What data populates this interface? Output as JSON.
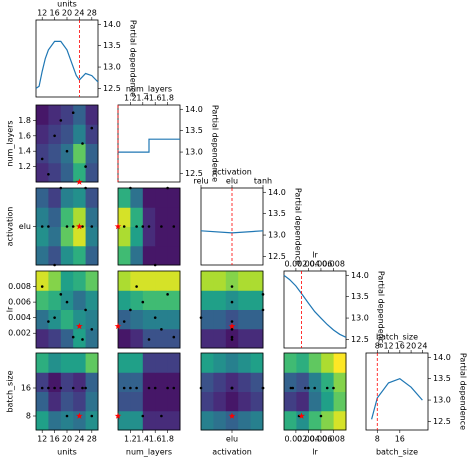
{
  "chart_data": {
    "type": "objective-matrix",
    "ylabel": "Partial dependence",
    "ylim": [
      12.3,
      14.1
    ],
    "yticks": [
      12.5,
      {
        "value": 13,
        "label": "13.0"
      },
      13.5,
      {
        "value": 14,
        "label": "14.0"
      }
    ],
    "zlim": [
      12.4,
      14.0
    ],
    "dimensions": [
      {
        "name": "units",
        "lim": [
          10,
          30
        ],
        "ticks": [
          12,
          16,
          20,
          24,
          28
        ],
        "pair_ticks": [
          12,
          16,
          20,
          24,
          28
        ],
        "best": 24
      },
      {
        "name": "num_layers",
        "lim": [
          1,
          2
        ],
        "ticks": [
          1.2,
          1.4,
          1.6,
          1.8
        ],
        "pair_ticks": [
          1.2,
          1.4,
          1.6,
          1.8
        ],
        "best": 1
      },
      {
        "name": "activation",
        "lim": [
          0,
          2
        ],
        "ticks": [
          {
            "value": 0,
            "label": "relu"
          },
          {
            "value": 1,
            "label": "elu"
          },
          {
            "value": 2,
            "label": "tanh"
          }
        ],
        "pair_ticks": [
          {
            "value": 1,
            "label": "elu"
          }
        ],
        "best": 1
      },
      {
        "name": "lr",
        "lim": [
          0.0001,
          0.01
        ],
        "ticks": [
          0.002,
          0.004,
          0.006,
          0.008
        ],
        "pair_ticks": [
          0.002,
          0.004,
          0.006,
          0.008
        ],
        "best": 0.0029
      },
      {
        "name": "batch_size",
        "lim": [
          4,
          26
        ],
        "ticks": [
          8,
          12,
          16,
          20,
          24
        ],
        "pair_ticks": [
          8,
          16
        ],
        "best": 8
      }
    ],
    "diagonal": [
      {
        "x": [
          10,
          11,
          12,
          13,
          14,
          16,
          18,
          20,
          22,
          23,
          24,
          26,
          28,
          30
        ],
        "values": [
          12.5,
          12.55,
          12.9,
          13.2,
          13.4,
          13.6,
          13.6,
          13.4,
          13.0,
          12.8,
          12.7,
          12.85,
          12.8,
          12.65
        ]
      },
      {
        "x": [
          1,
          1.5,
          1.5,
          2
        ],
        "values": [
          13.0,
          13.0,
          13.3,
          13.3
        ]
      },
      {
        "x": [
          0,
          1,
          2
        ],
        "values": [
          13.1,
          13.05,
          13.1
        ]
      },
      {
        "x": [
          0.0001,
          0.001,
          0.002,
          0.003,
          0.004,
          0.005,
          0.006,
          0.007,
          0.008,
          0.009,
          0.01
        ],
        "values": [
          14.0,
          13.9,
          13.75,
          13.55,
          13.35,
          13.15,
          13.0,
          12.85,
          12.72,
          12.62,
          12.55
        ]
      },
      {
        "x": [
          6,
          8,
          12,
          16,
          20,
          24
        ],
        "values": [
          12.55,
          13.05,
          13.4,
          13.5,
          13.3,
          13.0
        ]
      }
    ],
    "pairs": [
      {
        "z": [
          [
            12.6,
            12.7,
            12.9,
            13.4,
            12.8
          ],
          [
            12.7,
            12.8,
            13.0,
            13.6,
            12.9
          ],
          [
            12.6,
            12.7,
            12.8,
            13.1,
            12.7
          ],
          [
            12.5,
            12.6,
            12.7,
            12.9,
            12.6
          ]
        ]
      },
      {
        "z": [
          [
            13.0,
            12.8,
            13.2,
            13.4,
            12.9
          ],
          [
            13.2,
            13.0,
            13.6,
            13.9,
            13.1
          ],
          [
            13.1,
            12.9,
            13.5,
            13.8,
            13.0
          ],
          [
            12.9,
            12.7,
            13.1,
            13.2,
            12.8
          ]
        ]
      },
      {
        "z": [
          [
            13.5,
            13.0,
            12.5,
            12.5,
            12.5
          ],
          [
            13.8,
            13.3,
            12.6,
            12.5,
            12.5
          ],
          [
            13.9,
            13.4,
            12.6,
            12.5,
            12.5
          ],
          [
            13.4,
            13.0,
            12.5,
            12.5,
            12.5
          ]
        ]
      },
      {
        "z": [
          [
            12.6,
            12.7,
            12.9,
            13.3,
            13.0
          ],
          [
            13.0,
            13.2,
            13.4,
            13.2,
            13.1
          ],
          [
            13.5,
            13.4,
            13.2,
            13.0,
            13.2
          ],
          [
            13.9,
            13.7,
            13.3,
            13.4,
            13.6
          ]
        ]
      },
      {
        "z": [
          [
            12.5,
            12.6,
            12.8,
            12.8,
            12.8
          ],
          [
            12.9,
            13.0,
            13.1,
            13.1,
            13.1
          ],
          [
            13.3,
            13.4,
            13.5,
            13.5,
            13.5
          ],
          [
            13.8,
            13.9,
            13.9,
            13.9,
            13.9
          ]
        ]
      },
      {
        "z": [
          [
            12.6,
            12.6,
            12.5,
            12.6,
            12.6
          ],
          [
            12.9,
            12.9,
            12.8,
            12.9,
            12.9
          ],
          [
            13.3,
            13.3,
            13.2,
            13.3,
            13.3
          ],
          [
            13.8,
            13.8,
            13.7,
            13.8,
            13.8
          ]
        ]
      },
      {
        "z": [
          [
            13.3,
            13.0,
            13.1,
            13.0,
            13.2
          ],
          [
            12.9,
            12.6,
            12.8,
            12.7,
            13.0
          ],
          [
            12.7,
            12.5,
            12.7,
            12.6,
            12.9
          ],
          [
            13.4,
            13.2,
            13.3,
            13.3,
            13.6
          ]
        ]
      },
      {
        "z": [
          [
            13.2,
            13.2,
            12.6,
            12.6,
            12.6
          ],
          [
            12.8,
            12.8,
            12.5,
            12.5,
            12.5
          ],
          [
            12.9,
            12.9,
            12.5,
            12.5,
            12.5
          ],
          [
            13.3,
            13.3,
            12.7,
            12.7,
            12.7
          ]
        ]
      },
      {
        "z": [
          [
            13.1,
            13.0,
            12.9,
            13.0,
            13.1
          ],
          [
            12.7,
            12.6,
            12.5,
            12.6,
            12.7
          ],
          [
            12.8,
            12.7,
            12.6,
            12.7,
            12.8
          ],
          [
            13.3,
            13.2,
            13.1,
            13.2,
            13.3
          ]
        ]
      },
      {
        "z": [
          [
            13.4,
            13.2,
            13.5,
            13.7,
            13.9
          ],
          [
            12.7,
            12.6,
            13.0,
            13.3,
            13.6
          ],
          [
            12.9,
            12.8,
            13.1,
            13.4,
            13.7
          ],
          [
            13.5,
            13.4,
            13.6,
            13.8,
            14.0
          ]
        ]
      }
    ],
    "samples": [
      [
        24,
        1,
        1,
        0.0029,
        8
      ],
      [
        12,
        1.3,
        1,
        0.008,
        16
      ],
      [
        16,
        1.6,
        0,
        0.004,
        16
      ],
      [
        20,
        1.4,
        1,
        0.006,
        8
      ],
      [
        22,
        1.9,
        1,
        0.0015,
        16
      ],
      [
        26,
        1.2,
        2,
        0.005,
        16
      ],
      [
        28,
        1.7,
        1,
        0.0025,
        8
      ],
      [
        14,
        1.1,
        1,
        0.0035,
        16
      ],
      [
        18,
        1.8,
        2,
        0.007,
        16
      ],
      [
        25,
        1.5,
        1,
        0.0012,
        16
      ]
    ]
  }
}
